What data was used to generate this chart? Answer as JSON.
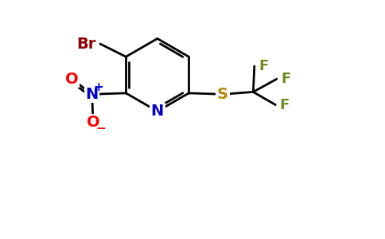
{
  "background_color": "#ffffff",
  "bond_color": "#000000",
  "atom_colors": {
    "Br": "#8b0000",
    "N_ring": "#0000cd",
    "N_nitro": "#0000cd",
    "O": "#ff0000",
    "S": "#b8860b",
    "F": "#6b8e23",
    "C": "#000000"
  },
  "bond_lw": 2.0,
  "font_size": 13
}
